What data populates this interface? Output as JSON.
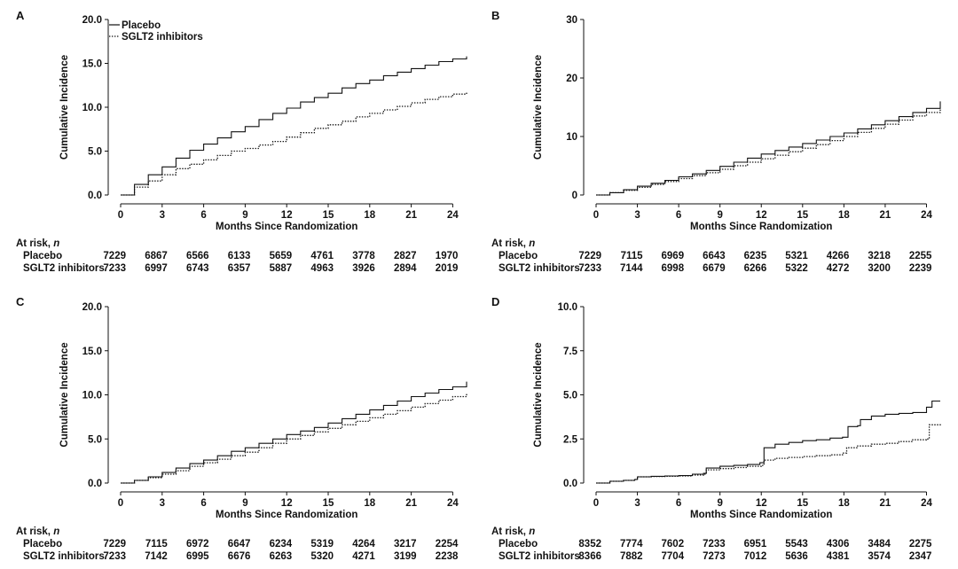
{
  "chart_data": [
    {
      "panel": "A",
      "type": "line",
      "xlabel": "Months Since Randomization",
      "ylabel": "Cumulative Incidence",
      "x_ticks": [
        0,
        3,
        6,
        9,
        12,
        15,
        18,
        21,
        24
      ],
      "y_ticks": [
        "0.0",
        "5.0",
        "10.0",
        "15.0",
        "20.0"
      ],
      "xlim": [
        0,
        25
      ],
      "ylim": [
        0,
        20
      ],
      "legend": [
        "Placebo",
        "SGLT2 inhibitors"
      ],
      "legend_position": "top-left",
      "series": [
        {
          "name": "Placebo",
          "style": "solid",
          "x": [
            0,
            1,
            2,
            3,
            4,
            5,
            6,
            7,
            8,
            9,
            10,
            11,
            12,
            13,
            14,
            15,
            16,
            17,
            18,
            19,
            20,
            21,
            22,
            23,
            24,
            25
          ],
          "y": [
            0,
            1.2,
            2.3,
            3.2,
            4.2,
            5.1,
            5.8,
            6.5,
            7.2,
            7.8,
            8.6,
            9.3,
            9.9,
            10.6,
            11.1,
            11.6,
            12.2,
            12.7,
            13.1,
            13.6,
            14.0,
            14.4,
            14.8,
            15.2,
            15.5,
            15.8
          ]
        },
        {
          "name": "SGLT2 inhibitors",
          "style": "dotted",
          "x": [
            0,
            1,
            2,
            3,
            4,
            5,
            6,
            7,
            8,
            9,
            10,
            11,
            12,
            13,
            14,
            15,
            16,
            17,
            18,
            19,
            20,
            21,
            22,
            23,
            24,
            25
          ],
          "y": [
            0,
            0.9,
            1.6,
            2.3,
            3.0,
            3.5,
            4.0,
            4.5,
            5.0,
            5.3,
            5.7,
            6.1,
            6.6,
            7.1,
            7.6,
            8.0,
            8.4,
            8.9,
            9.3,
            9.7,
            10.1,
            10.5,
            10.9,
            11.2,
            11.5,
            11.8
          ]
        }
      ],
      "at_risk": {
        "title": "At risk, n",
        "rows": [
          {
            "label": "Placebo",
            "values": [
              "7229",
              "6867",
              "6566",
              "6133",
              "5659",
              "4761",
              "3778",
              "2827",
              "1970"
            ]
          },
          {
            "label": "SGLT2 inhibitors",
            "values": [
              "7233",
              "6997",
              "6743",
              "6357",
              "5887",
              "4963",
              "3926",
              "2894",
              "2019"
            ]
          }
        ]
      }
    },
    {
      "panel": "B",
      "type": "line",
      "xlabel": "Months Since Randomization",
      "ylabel": "Cumulative Incidence",
      "x_ticks": [
        0,
        3,
        6,
        9,
        12,
        15,
        18,
        21,
        24
      ],
      "y_ticks": [
        "0",
        "10",
        "20",
        "30"
      ],
      "xlim": [
        0,
        25
      ],
      "ylim": [
        0,
        30
      ],
      "legend": [],
      "series": [
        {
          "name": "Placebo",
          "style": "solid",
          "x": [
            0,
            1,
            2,
            3,
            4,
            5,
            6,
            7,
            8,
            9,
            10,
            11,
            12,
            13,
            14,
            15,
            16,
            17,
            18,
            19,
            20,
            21,
            22,
            23,
            24,
            25
          ],
          "y": [
            0,
            0.4,
            0.9,
            1.5,
            2.0,
            2.5,
            3.1,
            3.6,
            4.2,
            4.9,
            5.6,
            6.3,
            7.0,
            7.6,
            8.2,
            8.8,
            9.4,
            10.0,
            10.6,
            11.3,
            12.0,
            12.7,
            13.4,
            14.1,
            14.8,
            16.0
          ]
        },
        {
          "name": "SGLT2 inhibitors",
          "style": "dotted",
          "x": [
            0,
            1,
            2,
            3,
            4,
            5,
            6,
            7,
            8,
            9,
            10,
            11,
            12,
            13,
            14,
            15,
            16,
            17,
            18,
            19,
            20,
            21,
            22,
            23,
            24,
            25
          ],
          "y": [
            0,
            0.4,
            0.8,
            1.3,
            1.8,
            2.3,
            2.8,
            3.3,
            3.8,
            4.4,
            5.0,
            5.6,
            6.2,
            6.8,
            7.4,
            8.0,
            8.6,
            9.3,
            10.0,
            10.7,
            11.4,
            12.1,
            12.8,
            13.5,
            14.1,
            14.8
          ]
        }
      ],
      "at_risk": {
        "title": "At risk, n",
        "rows": [
          {
            "label": "Placebo",
            "values": [
              "7229",
              "7115",
              "6969",
              "6643",
              "6235",
              "5321",
              "4266",
              "3218",
              "2255"
            ]
          },
          {
            "label": "SGLT2 inhibitors",
            "values": [
              "7233",
              "7144",
              "6998",
              "6679",
              "6266",
              "5322",
              "4272",
              "3200",
              "2239"
            ]
          }
        ]
      }
    },
    {
      "panel": "C",
      "type": "line",
      "xlabel": "Months Since Randomization",
      "ylabel": "Cumulative Incidence",
      "x_ticks": [
        0,
        3,
        6,
        9,
        12,
        15,
        18,
        21,
        24
      ],
      "y_ticks": [
        "0.0",
        "5.0",
        "10.0",
        "15.0",
        "20.0"
      ],
      "xlim": [
        0,
        25
      ],
      "ylim": [
        0,
        20
      ],
      "legend": [],
      "series": [
        {
          "name": "Placebo",
          "style": "solid",
          "x": [
            0,
            1,
            2,
            3,
            4,
            5,
            6,
            7,
            8,
            9,
            10,
            11,
            12,
            13,
            14,
            15,
            16,
            17,
            18,
            19,
            20,
            21,
            22,
            23,
            24,
            25
          ],
          "y": [
            0,
            0.3,
            0.7,
            1.2,
            1.7,
            2.2,
            2.6,
            3.1,
            3.6,
            4.0,
            4.5,
            5.0,
            5.5,
            5.9,
            6.3,
            6.8,
            7.3,
            7.8,
            8.3,
            8.8,
            9.3,
            9.8,
            10.2,
            10.6,
            10.9,
            11.5
          ]
        },
        {
          "name": "SGLT2 inhibitors",
          "style": "dotted",
          "x": [
            0,
            1,
            2,
            3,
            4,
            5,
            6,
            7,
            8,
            9,
            10,
            11,
            12,
            13,
            14,
            15,
            16,
            17,
            18,
            19,
            20,
            21,
            22,
            23,
            24,
            25
          ],
          "y": [
            0,
            0.3,
            0.6,
            1.0,
            1.4,
            1.9,
            2.3,
            2.7,
            3.1,
            3.5,
            4.0,
            4.5,
            5.0,
            5.4,
            5.8,
            6.2,
            6.6,
            7.0,
            7.4,
            7.8,
            8.2,
            8.6,
            9.0,
            9.4,
            9.8,
            10.2
          ]
        }
      ],
      "at_risk": {
        "title": "At risk, n",
        "rows": [
          {
            "label": "Placebo",
            "values": [
              "7229",
              "7115",
              "6972",
              "6647",
              "6234",
              "5319",
              "4264",
              "3217",
              "2254"
            ]
          },
          {
            "label": "SGLT2 inhibitors",
            "values": [
              "7233",
              "7142",
              "6995",
              "6676",
              "6263",
              "5320",
              "4271",
              "3199",
              "2238"
            ]
          }
        ]
      }
    },
    {
      "panel": "D",
      "type": "line",
      "xlabel": "Months Since Randomization",
      "ylabel": "Cumulative Incidence",
      "x_ticks": [
        0,
        3,
        6,
        9,
        12,
        15,
        18,
        21,
        24
      ],
      "y_ticks": [
        "0.0",
        "2.5",
        "5.0",
        "7.5",
        "10.0"
      ],
      "xlim": [
        0,
        25
      ],
      "ylim": [
        0,
        10
      ],
      "legend": [],
      "series": [
        {
          "name": "Placebo",
          "style": "solid",
          "x": [
            0,
            1,
            2,
            2.8,
            3,
            4,
            5,
            6,
            7,
            7.8,
            8,
            9,
            10,
            11,
            11.9,
            12.2,
            13,
            14,
            15,
            16,
            17,
            17.9,
            18.3,
            19,
            19.2,
            20,
            21,
            22,
            23,
            23.2,
            24,
            24.4,
            25
          ],
          "y": [
            0,
            0.1,
            0.15,
            0.2,
            0.35,
            0.38,
            0.4,
            0.42,
            0.5,
            0.55,
            0.85,
            0.95,
            1.0,
            1.05,
            1.15,
            2.0,
            2.2,
            2.3,
            2.4,
            2.45,
            2.55,
            2.6,
            3.2,
            3.25,
            3.6,
            3.8,
            3.9,
            3.95,
            4.0,
            4.0,
            4.3,
            4.65,
            4.65
          ]
        },
        {
          "name": "SGLT2 inhibitors",
          "style": "dotted",
          "x": [
            0,
            1,
            2,
            2.8,
            3,
            4,
            5,
            6,
            7,
            7.8,
            8,
            9,
            10,
            11,
            12,
            12.2,
            13,
            14,
            15,
            16,
            17,
            17.9,
            18.2,
            19,
            20,
            21,
            22,
            23,
            24,
            24.2,
            25
          ],
          "y": [
            0,
            0.1,
            0.15,
            0.2,
            0.35,
            0.37,
            0.38,
            0.4,
            0.45,
            0.5,
            0.75,
            0.82,
            0.88,
            0.95,
            1.0,
            1.3,
            1.4,
            1.45,
            1.5,
            1.55,
            1.6,
            1.7,
            2.0,
            2.1,
            2.2,
            2.25,
            2.35,
            2.45,
            2.5,
            3.3,
            3.35
          ]
        }
      ],
      "at_risk": {
        "title": "At risk, n",
        "rows": [
          {
            "label": "Placebo",
            "values": [
              "8352",
              "7774",
              "7602",
              "7233",
              "6951",
              "5543",
              "4306",
              "3484",
              "2275"
            ]
          },
          {
            "label": "SGLT2 inhibitors",
            "values": [
              "8366",
              "7882",
              "7704",
              "7273",
              "7012",
              "5636",
              "4381",
              "3574",
              "2347"
            ]
          }
        ]
      }
    }
  ],
  "colors": {
    "line": "#111111",
    "axis": "#111111",
    "background": "#ffffff"
  }
}
